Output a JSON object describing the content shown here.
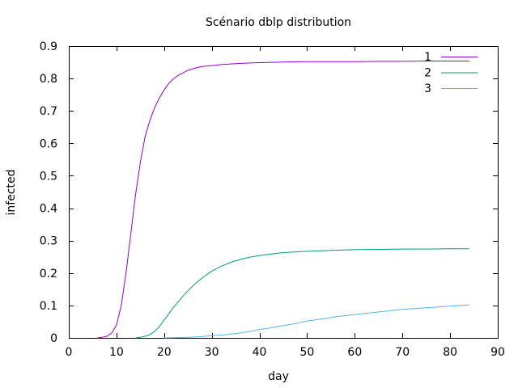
{
  "chart_data": {
    "type": "line",
    "title": "Scénario dblp distribution",
    "xlabel": "day",
    "ylabel": "infected",
    "xlim": [
      0,
      90
    ],
    "ylim": [
      0,
      0.9
    ],
    "xticks": [
      "0",
      "10",
      "20",
      "30",
      "40",
      "50",
      "60",
      "70",
      "80",
      "90"
    ],
    "yticks": [
      "0",
      "0.1",
      "0.2",
      "0.3",
      "0.4",
      "0.5",
      "0.6",
      "0.7",
      "0.8",
      "0.9"
    ],
    "grid": false,
    "legend_position": "top-right",
    "series": [
      {
        "name": "1",
        "color": "#9400d3",
        "x": [
          6,
          7,
          8,
          9,
          10,
          11,
          12,
          13,
          14,
          15,
          16,
          17,
          18,
          19,
          20,
          21,
          22,
          23,
          24,
          25,
          26,
          27,
          28,
          30,
          32,
          35,
          38,
          40,
          45,
          50,
          55,
          60,
          65,
          70,
          75,
          80,
          84
        ],
        "y": [
          0,
          0.002,
          0.005,
          0.015,
          0.04,
          0.1,
          0.2,
          0.32,
          0.44,
          0.54,
          0.62,
          0.67,
          0.71,
          0.74,
          0.765,
          0.785,
          0.8,
          0.81,
          0.818,
          0.825,
          0.83,
          0.834,
          0.837,
          0.84,
          0.843,
          0.846,
          0.848,
          0.849,
          0.851,
          0.852,
          0.852,
          0.852,
          0.853,
          0.853,
          0.854,
          0.854,
          0.854
        ]
      },
      {
        "name": "2",
        "color": "#009e73",
        "x": [
          14,
          15,
          16,
          17,
          18,
          19,
          20,
          21,
          22,
          23,
          24,
          25,
          26,
          27,
          28,
          29,
          30,
          32,
          34,
          36,
          38,
          40,
          42,
          45,
          50,
          55,
          60,
          65,
          70,
          75,
          80,
          84
        ],
        "y": [
          0,
          0.002,
          0.005,
          0.01,
          0.02,
          0.035,
          0.055,
          0.075,
          0.095,
          0.112,
          0.13,
          0.145,
          0.16,
          0.173,
          0.185,
          0.196,
          0.206,
          0.221,
          0.233,
          0.242,
          0.249,
          0.254,
          0.258,
          0.263,
          0.267,
          0.27,
          0.272,
          0.273,
          0.274,
          0.274,
          0.275,
          0.275
        ]
      },
      {
        "name": "3",
        "color": "#56b4e9",
        "x": [
          20,
          25,
          28,
          30,
          33,
          36,
          38,
          40,
          42,
          45,
          48,
          50,
          53,
          56,
          60,
          65,
          70,
          75,
          80,
          84
        ],
        "y": [
          0,
          0.002,
          0.004,
          0.007,
          0.01,
          0.015,
          0.02,
          0.026,
          0.03,
          0.038,
          0.045,
          0.052,
          0.058,
          0.065,
          0.072,
          0.08,
          0.088,
          0.093,
          0.098,
          0.102
        ]
      }
    ]
  }
}
